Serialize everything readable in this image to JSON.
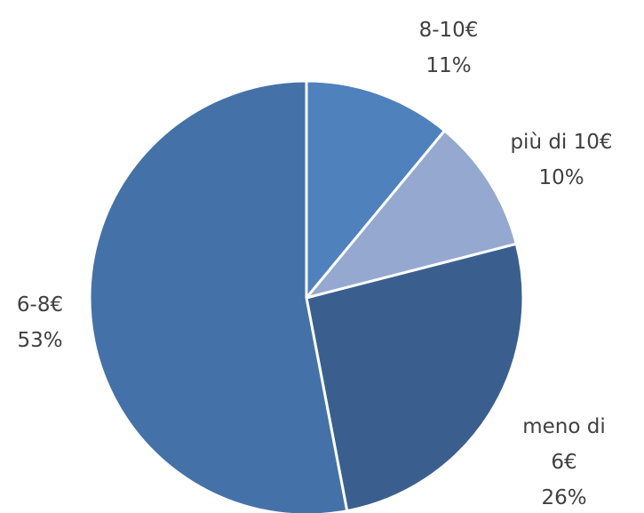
{
  "chart_data": {
    "type": "pie",
    "categories": [
      "8-10€",
      "più di 10€",
      "meno di 6€",
      "6-8€"
    ],
    "values": [
      11,
      10,
      26,
      53
    ],
    "value_labels": [
      "11%",
      "10%",
      "26%",
      "53%"
    ],
    "colors": [
      "#4f81bd",
      "#95a9d0",
      "#3a5f8f",
      "#4472a8"
    ],
    "start_angle": 0,
    "direction": "clockwise"
  }
}
